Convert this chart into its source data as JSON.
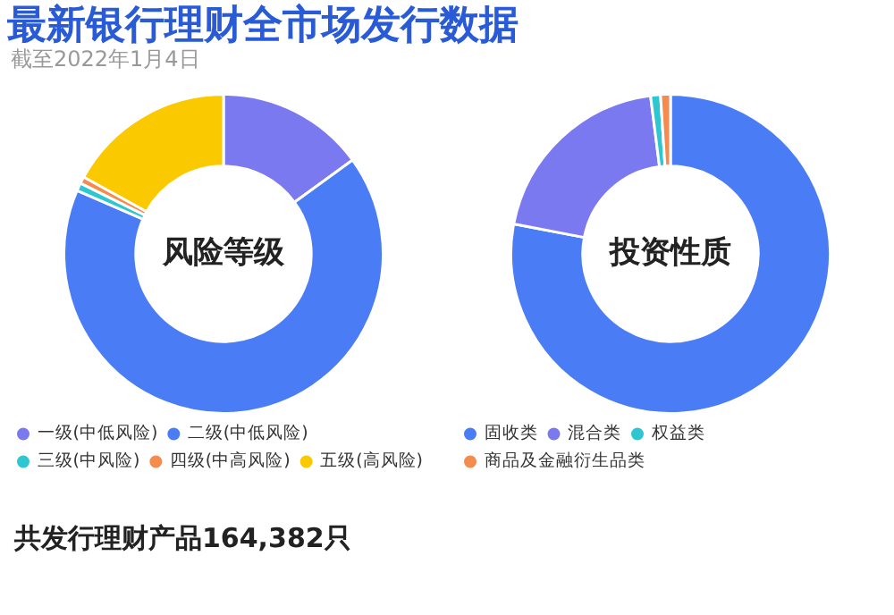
{
  "chart_data": [
    {
      "type": "donut",
      "title": "最新银行理财全市场发行数据",
      "subtitle": "截至2022年1月4日",
      "annotations": [
        "风险等级",
        "共发行理财产品164,382只"
      ],
      "categories": [
        "一级(中低风险)",
        "二级(中低风险)",
        "三级(中风险)",
        "四级(中高风险)",
        "五级(高风险)"
      ],
      "values": [
        15,
        66.5,
        0.8,
        0.7,
        17
      ],
      "colors": [
        "#7b79f0",
        "#4a7cf6",
        "#2ec6d0",
        "#f58b4c",
        "#fbc900"
      ],
      "legend": "bottom left"
    },
    {
      "type": "donut",
      "title": "投资性质",
      "categories": [
        "固收类",
        "混合类",
        "权益类",
        "商品及金融衍生品类"
      ],
      "values": [
        78,
        20,
        1,
        1
      ],
      "colors": [
        "#4a7cf6",
        "#7b79f0",
        "#2ec6d0",
        "#f58b4c"
      ],
      "legend": "bottom left"
    }
  ]
}
